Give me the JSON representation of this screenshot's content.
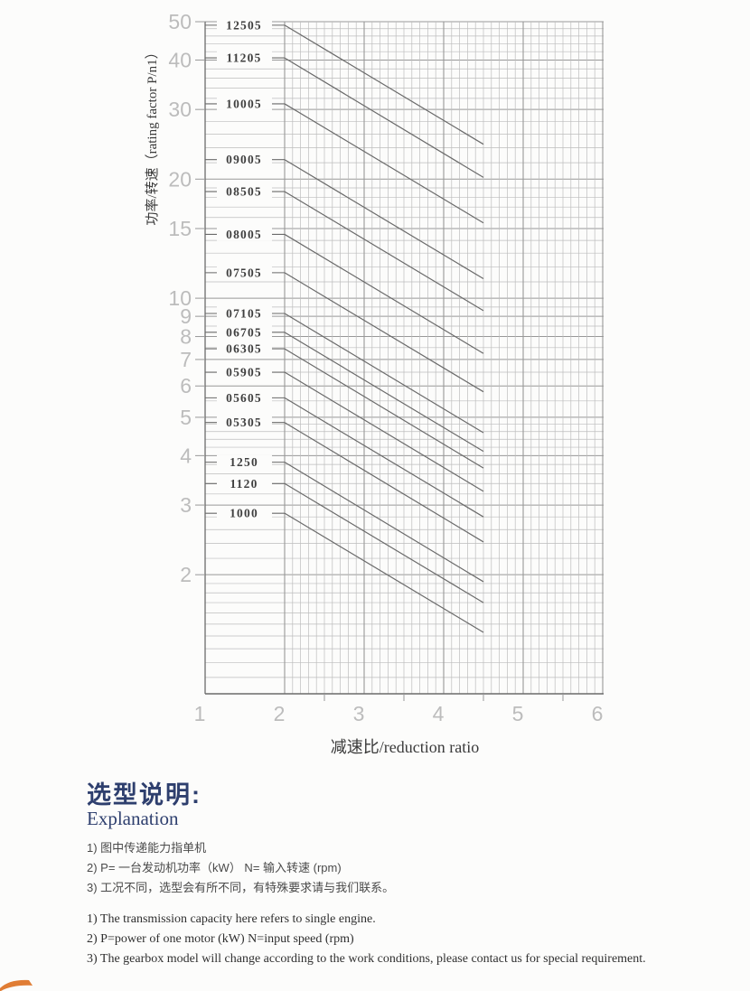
{
  "chart_data": {
    "type": "line",
    "title": "",
    "xlabel": "减速比/reduction ratio",
    "ylabel": "功率/转速（rating factor P/n1）",
    "x_scale": "linear",
    "y_scale": "log",
    "xlim": [
      1,
      6
    ],
    "ylim": [
      1,
      50
    ],
    "grid": "on",
    "x_axis": {
      "ticks": [
        1,
        2,
        3,
        4,
        5,
        6
      ],
      "half_ticks": [
        2.5,
        3.5,
        4.5,
        5.5
      ],
      "vgrid_start": 2,
      "vgrid_end": 6,
      "vgrid_step": 0.1
    },
    "y_axis": {
      "labeled_ticks": [
        50,
        40,
        30,
        20,
        15,
        10,
        9,
        8,
        7,
        6,
        5,
        4,
        3,
        2
      ],
      "major_lines": [
        1,
        2,
        3,
        4,
        5,
        6,
        7,
        8,
        9,
        10,
        15,
        20,
        30,
        40,
        50
      ],
      "minor_lines": [
        1.1,
        1.2,
        1.3,
        1.4,
        1.5,
        1.6,
        1.7,
        1.8,
        1.9,
        2.2,
        2.4,
        2.6,
        2.8,
        3.2,
        3.4,
        3.6,
        3.8,
        4.2,
        4.4,
        4.6,
        4.8,
        5.5,
        6.5,
        7.5,
        8.5,
        9.5,
        11,
        12,
        13,
        14,
        16,
        17,
        18,
        19,
        22,
        24,
        26,
        28,
        32,
        34,
        36,
        38,
        42,
        44,
        46,
        48
      ]
    },
    "series_note": "Each gearbox model line runs flat from the axis to ratio 2, then declines; value at ratio 4.5 is half the value at ratio 2 (constant torque capacity).",
    "series": [
      {
        "label": "12505",
        "ratio_span": [
          2,
          4.5
        ],
        "p_n1_at_ratio_2": 49,
        "p_n1_at_ratio_4_5": 24.5
      },
      {
        "label": "11205",
        "ratio_span": [
          2,
          4.5
        ],
        "p_n1_at_ratio_2": 40.5,
        "p_n1_at_ratio_4_5": 20.2
      },
      {
        "label": "10005",
        "ratio_span": [
          2,
          4.5
        ],
        "p_n1_at_ratio_2": 31,
        "p_n1_at_ratio_4_5": 15.5
      },
      {
        "label": "09005",
        "ratio_span": [
          2,
          4.5
        ],
        "p_n1_at_ratio_2": 22.4,
        "p_n1_at_ratio_4_5": 11.2
      },
      {
        "label": "08505",
        "ratio_span": [
          2,
          4.5
        ],
        "p_n1_at_ratio_2": 18.6,
        "p_n1_at_ratio_4_5": 9.3
      },
      {
        "label": "08005",
        "ratio_span": [
          2,
          4.5
        ],
        "p_n1_at_ratio_2": 14.5,
        "p_n1_at_ratio_4_5": 7.25
      },
      {
        "label": "07505",
        "ratio_span": [
          2,
          4.5
        ],
        "p_n1_at_ratio_2": 11.6,
        "p_n1_at_ratio_4_5": 5.8
      },
      {
        "label": "07105",
        "ratio_span": [
          2,
          4.5
        ],
        "p_n1_at_ratio_2": 9.15,
        "p_n1_at_ratio_4_5": 4.57
      },
      {
        "label": "06705",
        "ratio_span": [
          2,
          4.5
        ],
        "p_n1_at_ratio_2": 8.2,
        "p_n1_at_ratio_4_5": 4.1
      },
      {
        "label": "06305",
        "ratio_span": [
          2,
          4.5
        ],
        "p_n1_at_ratio_2": 7.45,
        "p_n1_at_ratio_4_5": 3.72
      },
      {
        "label": "05905",
        "ratio_span": [
          2,
          4.5
        ],
        "p_n1_at_ratio_2": 6.5,
        "p_n1_at_ratio_4_5": 3.25
      },
      {
        "label": "05605",
        "ratio_span": [
          2,
          4.5
        ],
        "p_n1_at_ratio_2": 5.6,
        "p_n1_at_ratio_4_5": 2.8
      },
      {
        "label": "05305",
        "ratio_span": [
          2,
          4.5
        ],
        "p_n1_at_ratio_2": 4.85,
        "p_n1_at_ratio_4_5": 2.42
      },
      {
        "label": "1250",
        "ratio_span": [
          2,
          4.5
        ],
        "p_n1_at_ratio_2": 3.85,
        "p_n1_at_ratio_4_5": 1.92
      },
      {
        "label": "1120",
        "ratio_span": [
          2,
          4.5
        ],
        "p_n1_at_ratio_2": 3.4,
        "p_n1_at_ratio_4_5": 1.7
      },
      {
        "label": "1000",
        "ratio_span": [
          2,
          4.5
        ],
        "p_n1_at_ratio_2": 2.86,
        "p_n1_at_ratio_4_5": 1.43
      }
    ],
    "legend_position": "labels-on-lines"
  },
  "explanation": {
    "heading_zh": "选型说明:",
    "heading_en": "Explanation",
    "notes_zh": [
      "1) 图中传递能力指单机",
      "2) P= 一台发动机功率（kW）  N= 输入转速 (rpm)",
      "3) 工况不同，选型会有所不同，有特殊要求请与我们联系。"
    ],
    "notes_en": [
      "1) The transmission capacity here refers to single engine.",
      "2) P=power of one motor (kW)  N=input speed (rpm)",
      "3) The gearbox model will change according to the work conditions, please contact us for special requirement."
    ]
  },
  "colors": {
    "heading_navy": "#2e3f6e",
    "grid_minor": "#bdbdbd",
    "grid_major": "#989898",
    "axis": "#6b6b6b",
    "series_line": "#6a6a6a",
    "tick_label": "#bcbcbc",
    "axis_title": "#3a3a3a",
    "series_label": "#3f3f3f",
    "decoration_orange": "#dd6f1f"
  }
}
